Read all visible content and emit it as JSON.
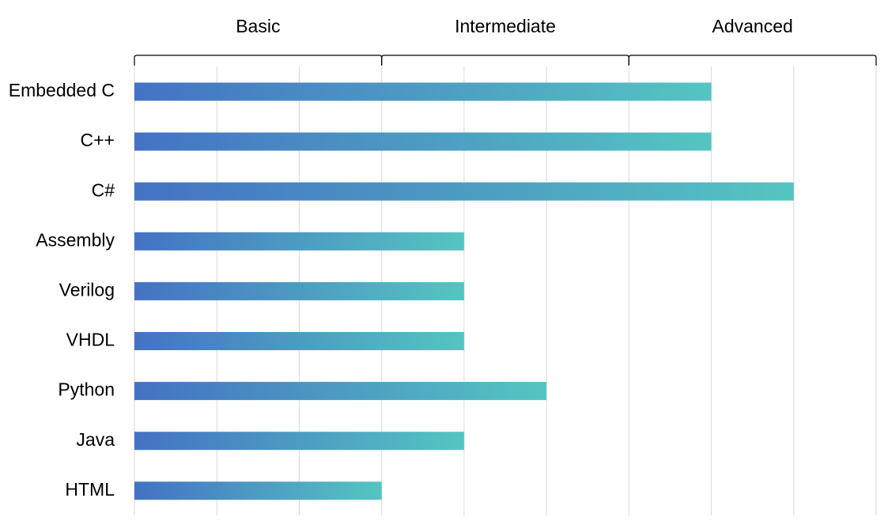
{
  "chart_data": {
    "type": "bar",
    "orientation": "horizontal",
    "categories": [
      "Embedded C",
      "C++",
      "C#",
      "Assembly",
      "Verilog",
      "VHDL",
      "Python",
      "Java",
      "HTML"
    ],
    "values": [
      7,
      7,
      8,
      4,
      4,
      4,
      5,
      4,
      3
    ],
    "xlim": [
      0,
      9
    ],
    "x_gridlines": [
      0,
      1,
      2,
      3,
      4,
      5,
      6,
      7,
      8,
      9
    ],
    "grid": true,
    "legend": "none",
    "title": "",
    "xlabel": "",
    "ylabel": "",
    "level_groups": [
      {
        "label": "Basic",
        "from": 0,
        "to": 3
      },
      {
        "label": "Intermediate",
        "from": 3,
        "to": 6
      },
      {
        "label": "Advanced",
        "from": 6,
        "to": 9
      }
    ],
    "colors": {
      "bar_gradient_start": "#4472C4",
      "bar_gradient_end": "#55C5C1",
      "grid": "#D9D9D9",
      "text": "#000000"
    }
  }
}
